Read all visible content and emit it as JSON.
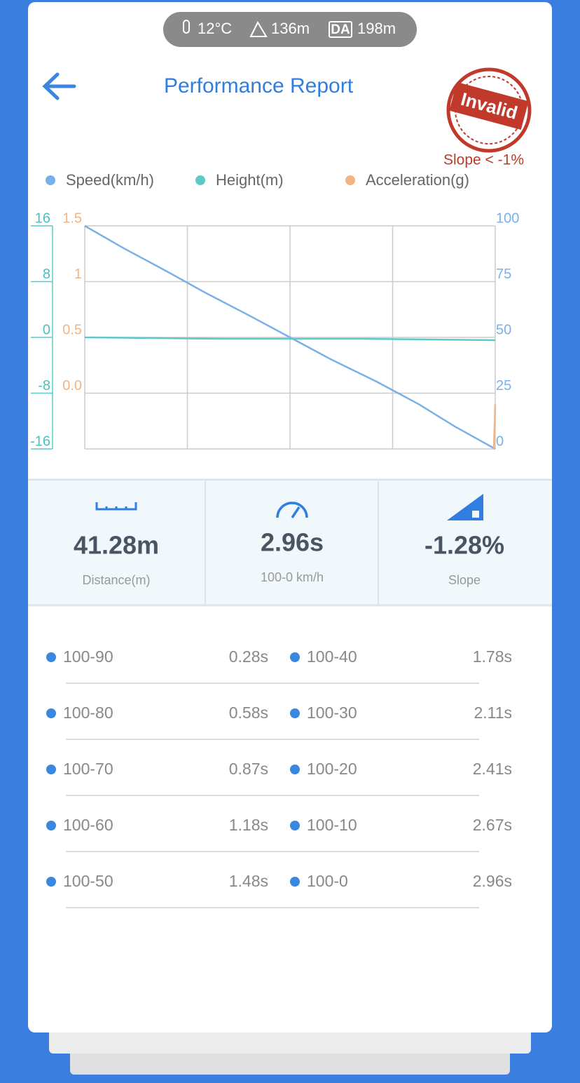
{
  "status": {
    "temperature": "12°C",
    "altitude": "136m",
    "density_altitude_label": "DA",
    "density_altitude": "198m"
  },
  "header": {
    "title": "Performance Report",
    "stamp": "Invalid",
    "stamp_note": "Slope < -1%"
  },
  "chart_data": {
    "type": "line",
    "xlim": [
      0,
      2.96
    ],
    "series": [
      {
        "name": "Speed(km/h)",
        "color": "#7ab0ea",
        "axis": "y2",
        "x": [
          0,
          0.28,
          0.58,
          0.87,
          1.18,
          1.48,
          1.78,
          2.11,
          2.41,
          2.67,
          2.96
        ],
        "values": [
          100,
          90,
          80,
          70,
          60,
          50,
          40,
          30,
          20,
          10,
          0
        ]
      },
      {
        "name": "Height(m)",
        "color": "#5fc8c8",
        "axis": "y",
        "x": [
          0,
          1,
          2,
          2.96
        ],
        "values": [
          0,
          -0.2,
          -0.2,
          -0.4
        ]
      },
      {
        "name": "Acceleration(g)",
        "color": "#f2b482",
        "axis": "y3",
        "x": [
          2.95,
          2.96
        ],
        "values": [
          -0.5,
          -0.1
        ]
      }
    ],
    "ylim": [
      -16,
      16
    ],
    "yticks": [
      -16,
      -8,
      0,
      8,
      16
    ],
    "y2lim": [
      0,
      100
    ],
    "y2ticks": [
      0,
      25,
      50,
      75,
      100
    ],
    "y3lim": [
      -0.5,
      1.5
    ],
    "y3ticks": [
      {
        "value": 0,
        "label": "0.0"
      },
      0.5,
      1,
      1.5
    ],
    "grid": true
  },
  "stats": [
    {
      "value": "41.28m",
      "label": "Distance(m)"
    },
    {
      "value": "2.96s",
      "label": "100-0 km/h"
    },
    {
      "value": "-1.28%",
      "label": "Slope"
    }
  ],
  "splits": [
    {
      "range": "100-90",
      "time": "0.28s"
    },
    {
      "range": "100-80",
      "time": "0.58s"
    },
    {
      "range": "100-70",
      "time": "0.87s"
    },
    {
      "range": "100-60",
      "time": "1.18s"
    },
    {
      "range": "100-50",
      "time": "1.48s"
    },
    {
      "range": "100-40",
      "time": "1.78s"
    },
    {
      "range": "100-30",
      "time": "2.11s"
    },
    {
      "range": "100-20",
      "time": "2.41s"
    },
    {
      "range": "100-10",
      "time": "2.67s"
    },
    {
      "range": "100-0",
      "time": "2.96s"
    }
  ]
}
